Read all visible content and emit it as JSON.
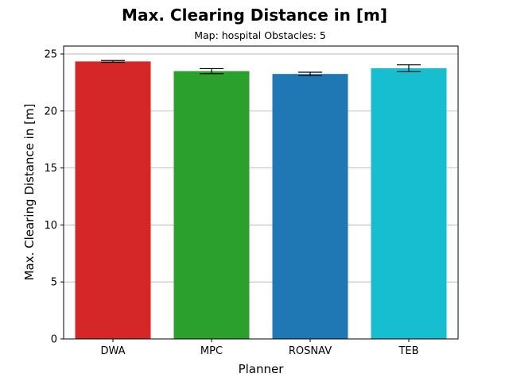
{
  "chart_data": {
    "type": "bar",
    "title": "Max. Clearing Distance in [m]",
    "subtitle": "Map: hospital Obstacles: 5",
    "xlabel": "Planner",
    "ylabel": "Max. Clearing Distance in [m]",
    "categories": [
      "DWA",
      "MPC",
      "ROSNAV",
      "TEB"
    ],
    "values": [
      24.35,
      23.5,
      23.25,
      23.75
    ],
    "errors": [
      0.08,
      0.22,
      0.15,
      0.3
    ],
    "colors": [
      "#d62728",
      "#2ca02c",
      "#1f77b4",
      "#17becf"
    ],
    "ylim": [
      0,
      25.7
    ],
    "yticks": [
      0,
      5,
      10,
      15,
      20,
      25
    ],
    "grid": "y"
  }
}
